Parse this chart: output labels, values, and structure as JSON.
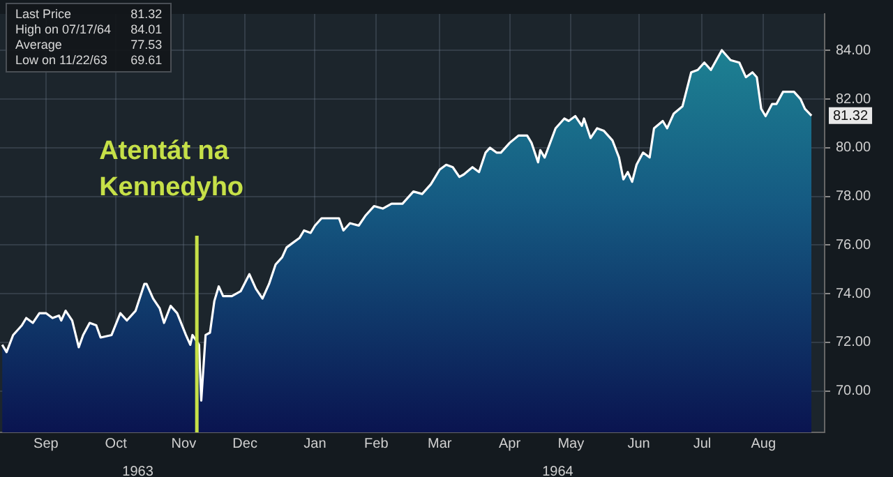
{
  "chart_data": {
    "type": "area",
    "x": [
      "1963-08-23",
      "1963-08-25",
      "1963-08-28",
      "1963-09-01",
      "1963-09-03",
      "1963-09-06",
      "1963-09-09",
      "1963-09-12",
      "1963-09-15",
      "1963-09-18",
      "1963-09-19",
      "1963-09-21",
      "1963-09-24",
      "1963-09-27",
      "1963-09-29",
      "1963-10-02",
      "1963-10-05",
      "1963-10-07",
      "1963-10-12",
      "1963-10-16",
      "1963-10-19",
      "1963-10-23",
      "1963-10-27",
      "1963-10-28",
      "1963-10-31",
      "1963-11-03",
      "1963-11-05",
      "1963-11-08",
      "1963-11-11",
      "1963-11-15",
      "1963-11-17",
      "1963-11-18",
      "1963-11-21",
      "1963-11-22",
      "1963-11-24",
      "1963-11-26",
      "1963-11-28",
      "1963-11-30",
      "1963-12-02",
      "1963-12-06",
      "1963-12-10",
      "1963-12-14",
      "1963-12-17",
      "1963-12-20",
      "1963-12-23",
      "1963-12-26",
      "1963-12-29",
      "1963-12-31",
      "1964-01-03",
      "1964-01-06",
      "1964-01-08",
      "1964-01-11",
      "1964-01-13",
      "1964-01-16",
      "1964-01-20",
      "1964-01-24",
      "1964-01-26",
      "1964-01-29",
      "1964-02-02",
      "1964-02-05",
      "1964-02-09",
      "1964-02-13",
      "1964-02-17",
      "1964-02-22",
      "1964-02-27",
      "1964-03-02",
      "1964-03-06",
      "1964-03-10",
      "1964-03-13",
      "1964-03-16",
      "1964-03-19",
      "1964-03-21",
      "1964-03-25",
      "1964-03-28",
      "1964-03-31",
      "1964-04-02",
      "1964-04-05",
      "1964-04-07",
      "1964-04-11",
      "1964-04-15",
      "1964-04-19",
      "1964-04-21",
      "1964-04-24",
      "1964-04-25",
      "1964-04-27",
      "1964-05-02",
      "1964-05-06",
      "1964-05-08",
      "1964-05-11",
      "1964-05-14",
      "1964-05-15",
      "1964-05-18",
      "1964-05-21",
      "1964-05-24",
      "1964-05-28",
      "1964-05-31",
      "1964-06-02",
      "1964-06-04",
      "1964-06-06",
      "1964-06-08",
      "1964-06-11",
      "1964-06-14",
      "1964-06-16",
      "1964-06-20",
      "1964-06-22",
      "1964-06-25",
      "1964-06-29",
      "1964-07-03",
      "1964-07-06",
      "1964-07-09",
      "1964-07-12",
      "1964-07-17",
      "1964-07-21",
      "1964-07-25",
      "1964-07-28",
      "1964-07-31",
      "1964-08-02",
      "1964-08-04",
      "1964-08-06",
      "1964-08-09",
      "1964-08-11",
      "1964-08-14",
      "1964-08-19",
      "1964-08-22",
      "1964-08-24",
      "1964-08-27"
    ],
    "series": [
      {
        "color": "#ffffff",
        "values": [
          71.9,
          71.6,
          72.3,
          72.7,
          73.0,
          72.8,
          73.2,
          73.2,
          73.0,
          73.1,
          72.9,
          73.3,
          72.9,
          71.8,
          72.3,
          72.8,
          72.7,
          72.2,
          72.3,
          73.2,
          72.9,
          73.3,
          74.4,
          74.4,
          73.8,
          73.4,
          72.8,
          73.5,
          73.2,
          72.3,
          71.9,
          72.3,
          71.9,
          69.61,
          72.3,
          72.4,
          73.7,
          74.3,
          73.9,
          73.9,
          74.1,
          74.8,
          74.2,
          73.8,
          74.4,
          75.2,
          75.5,
          75.9,
          76.1,
          76.3,
          76.6,
          76.5,
          76.8,
          77.1,
          77.1,
          77.1,
          76.6,
          76.9,
          76.8,
          77.2,
          77.6,
          77.5,
          77.7,
          77.7,
          78.2,
          78.1,
          78.5,
          79.1,
          79.3,
          79.2,
          78.8,
          78.9,
          79.2,
          79.0,
          79.8,
          80.0,
          79.8,
          79.8,
          80.2,
          80.5,
          80.5,
          80.2,
          79.4,
          79.9,
          79.6,
          80.8,
          81.2,
          81.1,
          81.3,
          80.9,
          81.2,
          80.4,
          80.8,
          80.7,
          80.3,
          79.6,
          78.7,
          79.0,
          78.6,
          79.3,
          79.8,
          79.6,
          80.8,
          81.1,
          80.8,
          81.4,
          81.7,
          83.1,
          83.2,
          83.5,
          83.2,
          84.01,
          83.6,
          83.5,
          82.9,
          83.1,
          82.9,
          81.6,
          81.3,
          81.8,
          81.8,
          82.3,
          82.3,
          82.0,
          81.6,
          81.32
        ],
        "value_labels": [
          null,
          null,
          null,
          null,
          null,
          null,
          null,
          null,
          null,
          null,
          null,
          null,
          null,
          null,
          null,
          null,
          null,
          null,
          null,
          null,
          null,
          null,
          null,
          null,
          null,
          null,
          null,
          null,
          null,
          null,
          null,
          null,
          null,
          null,
          null,
          null,
          null,
          null,
          null,
          null,
          null,
          null,
          null,
          null,
          null,
          null,
          null,
          null,
          null,
          null,
          null,
          null,
          null,
          null,
          null,
          null,
          null,
          null,
          null,
          null,
          null,
          null,
          null,
          null,
          null,
          null,
          null,
          null,
          null,
          null,
          null,
          null,
          null,
          null,
          null,
          null,
          null,
          null,
          null,
          null,
          null,
          null,
          null,
          null,
          null,
          null,
          null,
          null,
          null,
          null,
          null,
          null,
          null,
          null,
          null,
          null,
          null,
          null,
          null,
          null,
          null,
          null,
          null,
          null,
          null,
          null,
          null,
          null,
          null,
          null,
          null,
          null,
          null,
          null,
          null,
          null,
          null,
          null,
          null,
          null,
          null,
          null,
          null,
          null,
          null,
          "81.32"
        ]
      }
    ],
    "xlim": [
      "1963-08-22",
      "1964-09-02"
    ],
    "xticks": [
      {
        "value": "1963-09-12",
        "label": "Sep"
      },
      {
        "value": "1963-10-14",
        "label": "Oct"
      },
      {
        "value": "1963-11-14",
        "label": "Nov"
      },
      {
        "value": "1963-12-12",
        "label": "Dec"
      },
      {
        "value": "1964-01-13",
        "label": "Jan"
      },
      {
        "value": "1964-02-10",
        "label": "Feb"
      },
      {
        "value": "1964-03-10",
        "label": "Mar"
      },
      {
        "value": "1964-04-11",
        "label": "Apr"
      },
      {
        "value": "1964-05-09",
        "label": "May"
      },
      {
        "value": "1964-06-09",
        "label": "Jun"
      },
      {
        "value": "1964-07-08",
        "label": "Jul"
      },
      {
        "value": "1964-08-05",
        "label": "Aug"
      }
    ],
    "x2lim": [
      "1963-08-22",
      "1964-09-02"
    ],
    "x2ticks": [
      {
        "value": "1963-10-24",
        "label": "1963"
      },
      {
        "value": "1964-05-03",
        "label": "1964"
      }
    ],
    "ylim": [
      68.3,
      85.5
    ],
    "yticks": [
      {
        "value": 70,
        "label": "70.00"
      },
      {
        "value": 72,
        "label": "72.00"
      },
      {
        "value": 74,
        "label": "74.00"
      },
      {
        "value": 76,
        "label": "76.00"
      },
      {
        "value": 78,
        "label": "78.00"
      },
      {
        "value": 80,
        "label": "80.00"
      },
      {
        "value": 82,
        "label": "82.00"
      },
      {
        "value": 84,
        "label": "84.00"
      }
    ],
    "ref_lines": [
      {
        "axis": "x",
        "value": "1963-11-20",
        "label": "Atentát na Kennedyho",
        "color": "#c6e048"
      }
    ],
    "annotations": [
      "Last Price",
      "81.32",
      "High on 07/17/64",
      "84.01",
      "Average",
      "77.53",
      "Low on 11/22/63",
      "69.61"
    ],
    "grid": true,
    "legend": false,
    "marker": "none",
    "line_style": "solid"
  }
}
